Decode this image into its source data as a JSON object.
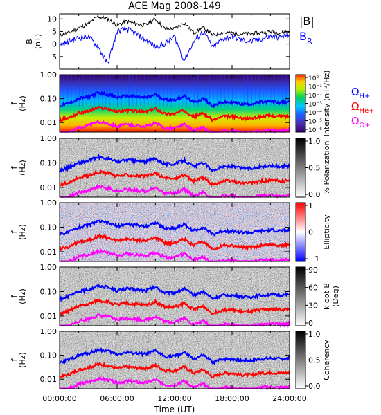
{
  "title": "ACE Mag 2008-149",
  "xlabel": "Time (UT)",
  "x_tick_labels": [
    "00:00:00",
    "06:00:00",
    "12:00:00",
    "18:00:00",
    "24:00:00"
  ],
  "colors": {
    "b_total": "#000000",
    "b_radial": "#0000ff",
    "omega_h": "#0000ff",
    "omega_he": "#ff0000",
    "omega_o": "#ff00ff"
  },
  "chart_data": [
    {
      "type": "line",
      "panel": "magnetic-field",
      "ylabel": [
        "B",
        "(nT)"
      ],
      "ylim": [
        -10,
        12
      ],
      "y_tick_labels": [
        "10",
        "5",
        "0",
        "−5"
      ],
      "y_ticks": [
        10,
        5,
        0,
        -5
      ],
      "x_hours": [
        0,
        1,
        2,
        3,
        4,
        5,
        6,
        7,
        8,
        9,
        10,
        11,
        12,
        13,
        14,
        15,
        16,
        17,
        18,
        19,
        20,
        21,
        22,
        23,
        24
      ],
      "legend": [
        {
          "label": "|B|",
          "color_key": "b_total"
        },
        {
          "label": "B",
          "sub": "R",
          "color_key": "b_radial"
        }
      ],
      "series": [
        {
          "name": "|B|",
          "values": [
            3.5,
            4.5,
            6.5,
            8,
            11,
            10,
            7.5,
            9,
            8,
            7.5,
            10,
            6,
            6,
            8.5,
            4.5,
            6.5,
            3.5,
            4.5,
            4.5,
            4,
            4,
            4.5,
            5,
            4.5,
            5
          ]
        },
        {
          "name": "B_R",
          "values": [
            -0.5,
            1,
            2.5,
            3,
            -1,
            -8,
            5,
            6,
            4,
            1.5,
            -1,
            0,
            3,
            -6.5,
            1,
            5,
            -1.5,
            2,
            3,
            1.5,
            1,
            2,
            3,
            2.5,
            4
          ]
        }
      ]
    },
    {
      "type": "heatmap",
      "panel": "intensity",
      "ylabel": [
        "f",
        "(Hz)"
      ],
      "ylim": [
        0.004,
        1.0
      ],
      "y_tick_labels": [
        "1.00",
        "0.10",
        "0.01"
      ],
      "colorbar_label": "Intensity (nT²/Hz)",
      "colorbar_ticks": [
        "10⁰",
        "10⁻¹",
        "10⁻²",
        "10⁻³",
        "10⁻⁴",
        "10⁻⁵",
        "10⁻⁶"
      ],
      "colorscale": "rainbow",
      "legend": [
        {
          "label": "Ω",
          "sub": "H+",
          "color_key": "omega_h"
        },
        {
          "label": "Ω",
          "sub": "He+",
          "color_key": "omega_he"
        },
        {
          "label": "Ω",
          "sub": "O+",
          "color_key": "omega_o"
        }
      ]
    },
    {
      "type": "heatmap",
      "panel": "polarization",
      "ylabel": [
        "f",
        "(Hz)"
      ],
      "ylim": [
        0.004,
        1.0
      ],
      "y_tick_labels": [
        "1.00",
        "0.10",
        "0.01"
      ],
      "colorbar_label": "% Polarization",
      "colorbar_ticks": [
        "1.0",
        "0.5",
        "0.0"
      ],
      "colorscale": "grayscale"
    },
    {
      "type": "heatmap",
      "panel": "ellipticity",
      "ylabel": [
        "f",
        "(Hz)"
      ],
      "ylim": [
        0.004,
        1.0
      ],
      "y_tick_labels": [
        "1.00",
        "0.10",
        "0.01"
      ],
      "colorbar_label": "Ellipticity",
      "colorbar_ticks": [
        "1",
        "0",
        "−1"
      ],
      "colorscale": "blue-white-red"
    },
    {
      "type": "heatmap",
      "panel": "k-dot-b",
      "ylabel": [
        "f",
        "(Hz)"
      ],
      "ylim": [
        0.004,
        1.0
      ],
      "y_tick_labels": [
        "1.00",
        "0.10",
        "0.01"
      ],
      "colorbar_label": [
        "k dot B",
        "(Deg)"
      ],
      "colorbar_ticks": [
        "90",
        "60",
        "30",
        "0"
      ],
      "colorscale": "grayscale"
    },
    {
      "type": "heatmap",
      "panel": "coherency",
      "ylabel": [
        "f",
        "(Hz)"
      ],
      "ylim": [
        0.004,
        1.0
      ],
      "y_tick_labels": [
        "1.00",
        "0.10",
        "0.01"
      ],
      "colorbar_label": "Coherency",
      "colorbar_ticks": [
        "1.0",
        "0.5",
        "0.0"
      ],
      "colorscale": "grayscale"
    }
  ],
  "gyrofrequency_lines": {
    "x_hours": [
      0,
      1,
      2,
      3,
      4,
      5,
      6,
      7,
      8,
      9,
      10,
      11,
      12,
      13,
      14,
      15,
      16,
      17,
      18,
      19,
      20,
      21,
      22,
      23,
      24
    ],
    "omega_h_hz": [
      0.05,
      0.065,
      0.1,
      0.12,
      0.17,
      0.15,
      0.11,
      0.13,
      0.12,
      0.11,
      0.15,
      0.09,
      0.09,
      0.13,
      0.07,
      0.1,
      0.05,
      0.07,
      0.07,
      0.06,
      0.06,
      0.07,
      0.075,
      0.07,
      0.075
    ],
    "omega_he_hz": [
      0.0125,
      0.016,
      0.025,
      0.03,
      0.042,
      0.038,
      0.028,
      0.033,
      0.03,
      0.028,
      0.038,
      0.023,
      0.023,
      0.033,
      0.018,
      0.025,
      0.0125,
      0.018,
      0.018,
      0.015,
      0.015,
      0.018,
      0.019,
      0.018,
      0.019
    ],
    "omega_o_hz": [
      0.0031,
      0.004,
      0.0063,
      0.0075,
      0.0105,
      0.0095,
      0.007,
      0.0083,
      0.0075,
      0.007,
      0.0095,
      0.0058,
      0.0058,
      0.0083,
      0.0045,
      0.0063,
      0.0031,
      0.0045,
      0.0045,
      0.0038,
      0.0038,
      0.0045,
      0.0048,
      0.0045,
      0.0048
    ]
  }
}
